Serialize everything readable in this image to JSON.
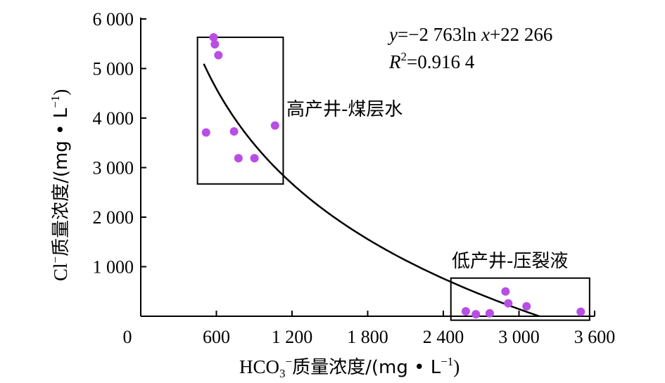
{
  "chart_data": {
    "type": "scatter",
    "xlabel_main": "HCO",
    "xlabel_sub": "3",
    "xlabel_sup": "−",
    "xlabel_rest": "质量浓度/(mg • L",
    "xlabel_unit_sup": "−1",
    "xlabel_close": ")",
    "ylabel_main": "Cl",
    "ylabel_sup": "−",
    "ylabel_rest": "质量浓度/(mg • L",
    "ylabel_unit_sup": "−1",
    "ylabel_close": ")",
    "xlim": [
      0,
      3600
    ],
    "ylim": [
      0,
      6000
    ],
    "x_ticks": [
      {
        "value": 0,
        "label": "0"
      },
      {
        "value": 600,
        "label": "600"
      },
      {
        "value": 1200,
        "label": "1 200"
      },
      {
        "value": 1800,
        "label": "1 800"
      },
      {
        "value": 2400,
        "label": "2 400"
      },
      {
        "value": 3000,
        "label": "3 000"
      },
      {
        "value": 3600,
        "label": "3 600"
      }
    ],
    "y_ticks": [
      {
        "value": 1000,
        "label": "1 000"
      },
      {
        "value": 2000,
        "label": "2 000"
      },
      {
        "value": 3000,
        "label": "3 000"
      },
      {
        "value": 4000,
        "label": "4 000"
      },
      {
        "value": 5000,
        "label": "5 000"
      },
      {
        "value": 6000,
        "label": "6 000"
      }
    ],
    "points": [
      {
        "x": 578,
        "y": 5630
      },
      {
        "x": 588,
        "y": 5490
      },
      {
        "x": 616,
        "y": 5270
      },
      {
        "x": 518,
        "y": 3710
      },
      {
        "x": 740,
        "y": 3730
      },
      {
        "x": 1065,
        "y": 3850
      },
      {
        "x": 775,
        "y": 3190
      },
      {
        "x": 902,
        "y": 3190
      },
      {
        "x": 2578,
        "y": 100
      },
      {
        "x": 2658,
        "y": 40
      },
      {
        "x": 2768,
        "y": 60
      },
      {
        "x": 2893,
        "y": 500
      },
      {
        "x": 2915,
        "y": 260
      },
      {
        "x": 3060,
        "y": 200
      },
      {
        "x": 3490,
        "y": 90
      }
    ],
    "point_color": "#b94ee6",
    "fit": {
      "a": -2763,
      "b": 22266,
      "x_from": 500,
      "x_to": 3160,
      "equation_y": "y",
      "equation_mid": "=−2 763ln ",
      "equation_x": "x",
      "equation_end": "+22 266",
      "r2_label": "R",
      "r2_sup": "2",
      "r2_value": "=0.916 4"
    },
    "groups": [
      {
        "label": "高产井-煤层水",
        "x_range": [
          450,
          1130
        ],
        "y_range": [
          2670,
          5630
        ]
      },
      {
        "label": "低产井-压裂液",
        "x_range": [
          2460,
          3560
        ],
        "y_range": [
          -80,
          770
        ]
      }
    ]
  }
}
